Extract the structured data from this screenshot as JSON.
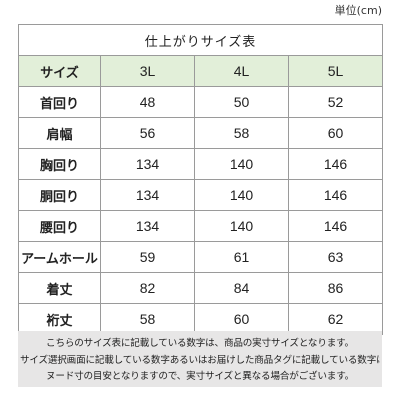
{
  "unit_label": "単位(cm)",
  "table": {
    "title": "仕上がりサイズ表",
    "corner_label": "サイズ",
    "sizes": [
      "3L",
      "4L",
      "5L"
    ],
    "rows": [
      {
        "label": "首回り",
        "values": [
          "48",
          "50",
          "52"
        ]
      },
      {
        "label": "肩幅",
        "values": [
          "56",
          "58",
          "60"
        ]
      },
      {
        "label": "胸回り",
        "values": [
          "134",
          "140",
          "146"
        ]
      },
      {
        "label": "胴回り",
        "values": [
          "134",
          "140",
          "146"
        ]
      },
      {
        "label": "腰回り",
        "values": [
          "134",
          "140",
          "146"
        ]
      },
      {
        "label": "アームホール",
        "values": [
          "59",
          "61",
          "63"
        ]
      },
      {
        "label": "着丈",
        "values": [
          "82",
          "84",
          "86"
        ]
      },
      {
        "label": "裄丈",
        "values": [
          "58",
          "60",
          "62"
        ]
      }
    ]
  },
  "note": {
    "lines": [
      "こちらのサイズ表に記載している数字は、商品の実寸サイズとなります。",
      "サイズ選択画面に記載している数字あるいはお届けした商品タグに記載している数字は",
      "ヌード寸の目安となりますので、実寸サイズと異なる場合がございます。"
    ]
  },
  "colors": {
    "header_background": "#e2efd9",
    "note_background": "#e7e6e6",
    "border": "#9a9a9a"
  }
}
